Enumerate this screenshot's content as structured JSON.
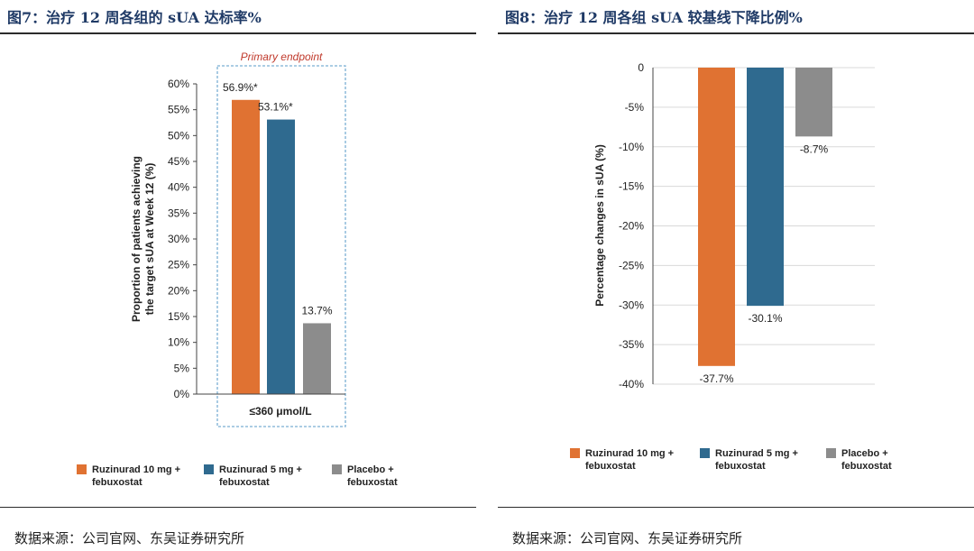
{
  "left": {
    "title": "图7：治疗 12 周各组的 sUA 达标率%",
    "source": "数据来源：公司官网、东吴证券研究所"
  },
  "right": {
    "title": "图8：治疗 12 周各组 sUA 较基线下降比例%",
    "source": "数据来源：公司官网、东吴证券研究所"
  },
  "colors": {
    "orange": "#E07232",
    "blue": "#2F6A8F",
    "gray": "#8C8C8C",
    "frame": "#7BAFD4",
    "annotation": "#C0392B",
    "title": "#1F3A66"
  },
  "chart_data": [
    {
      "type": "bar",
      "annotation": "Primary endpoint",
      "ylabel": "Proportion of patients achieving the target sUA at Week 12 (%)",
      "ylabel_lines": [
        "Proportion of patients achieving",
        "the target sUA at Week 12 (%)"
      ],
      "xlabel": "≤360 μmol/L",
      "ylim": [
        0,
        60
      ],
      "ticks": [
        0,
        5,
        10,
        15,
        20,
        25,
        30,
        35,
        40,
        45,
        50,
        55,
        60
      ],
      "tick_labels": [
        "0%",
        "5%",
        "10%",
        "15%",
        "20%",
        "25%",
        "30%",
        "35%",
        "40%",
        "45%",
        "50%",
        "55%",
        "60%"
      ],
      "series": [
        {
          "name": "Ruzinurad 10 mg + febuxostat",
          "legend_lines": [
            "Ruzinurad 10 mg +",
            "febuxostat"
          ],
          "value": 56.9,
          "label": "56.9%*",
          "color": "#E07232"
        },
        {
          "name": "Ruzinurad 5 mg + febuxostat",
          "legend_lines": [
            "Ruzinurad 5 mg +",
            "febuxostat"
          ],
          "value": 53.1,
          "label": "53.1%*",
          "color": "#2F6A8F"
        },
        {
          "name": "Placebo + febuxostat",
          "legend_lines": [
            "Placebo +",
            "febuxostat"
          ],
          "value": 13.7,
          "label": "13.7%",
          "color": "#8C8C8C"
        }
      ],
      "legend": "bottom"
    },
    {
      "type": "bar",
      "ylabel": "Percentage changes in sUA (%)",
      "ylim": [
        -40,
        0
      ],
      "ticks": [
        0,
        -5,
        -10,
        -15,
        -20,
        -25,
        -30,
        -35,
        -40
      ],
      "tick_labels": [
        "0",
        "-5%",
        "-10%",
        "-15%",
        "-20%",
        "-25%",
        "-30%",
        "-35%",
        "-40%"
      ],
      "series": [
        {
          "name": "Ruzinurad 10 mg + febuxostat",
          "legend_lines": [
            "Ruzinurad 10 mg +",
            "febuxostat"
          ],
          "value": -37.7,
          "label": "-37.7%",
          "color": "#E07232"
        },
        {
          "name": "Ruzinurad 5 mg + febuxostat",
          "legend_lines": [
            "Ruzinurad 5 mg +",
            "febuxostat"
          ],
          "value": -30.1,
          "label": "-30.1%",
          "color": "#2F6A8F"
        },
        {
          "name": "Placebo + febuxostat",
          "legend_lines": [
            "Placebo +",
            "febuxostat"
          ],
          "value": -8.7,
          "label": "-8.7%",
          "color": "#8C8C8C"
        }
      ],
      "legend": "bottom"
    }
  ]
}
